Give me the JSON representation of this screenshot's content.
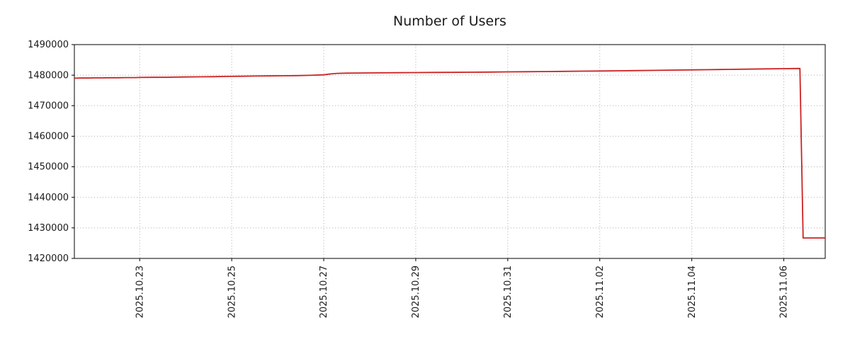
{
  "chart_data": {
    "type": "line",
    "title": "Number of Users",
    "xlabel": "",
    "ylabel": "",
    "grid": "dotted",
    "legend": "none",
    "colors": {
      "grid": "#b0b0b0",
      "axis": "#000000",
      "text": "#1a1a1a"
    },
    "x_range": [
      -1.42,
      14.9
    ],
    "y_range": [
      1420000,
      1490000
    ],
    "y_ticks": [
      1420000,
      1430000,
      1440000,
      1450000,
      1460000,
      1470000,
      1480000,
      1490000
    ],
    "x_ticks": [
      {
        "day": 0,
        "label": "2025.10.23"
      },
      {
        "day": 2,
        "label": "2025.10.25"
      },
      {
        "day": 4,
        "label": "2025.10.27"
      },
      {
        "day": 6,
        "label": "2025.10.29"
      },
      {
        "day": 8,
        "label": "2025.10.31"
      },
      {
        "day": 10,
        "label": "2025.11.02"
      },
      {
        "day": 12,
        "label": "2025.11.04"
      },
      {
        "day": 14,
        "label": "2025.11.06"
      }
    ],
    "series": [
      {
        "color": "#cc2222",
        "points": [
          [
            -1.42,
            1479000
          ],
          [
            -1.3,
            1479050
          ],
          [
            -1.1,
            1479050
          ],
          [
            -1.0,
            1479100
          ],
          [
            -0.8,
            1479100
          ],
          [
            -0.7,
            1479150
          ],
          [
            -0.5,
            1479150
          ],
          [
            -0.3,
            1479200
          ],
          [
            -0.1,
            1479200
          ],
          [
            0.0,
            1479250
          ],
          [
            0.3,
            1479300
          ],
          [
            0.6,
            1479300
          ],
          [
            0.8,
            1479350
          ],
          [
            1.0,
            1479400
          ],
          [
            1.3,
            1479450
          ],
          [
            1.6,
            1479500
          ],
          [
            1.9,
            1479600
          ],
          [
            2.2,
            1479650
          ],
          [
            2.5,
            1479700
          ],
          [
            2.8,
            1479750
          ],
          [
            3.1,
            1479800
          ],
          [
            3.4,
            1479850
          ],
          [
            3.7,
            1479950
          ],
          [
            4.0,
            1480100
          ],
          [
            4.15,
            1480400
          ],
          [
            4.3,
            1480600
          ],
          [
            4.5,
            1480650
          ],
          [
            4.8,
            1480700
          ],
          [
            5.2,
            1480750
          ],
          [
            5.6,
            1480800
          ],
          [
            6.0,
            1480850
          ],
          [
            6.4,
            1480880
          ],
          [
            6.8,
            1480920
          ],
          [
            7.2,
            1480960
          ],
          [
            7.6,
            1481000
          ],
          [
            8.0,
            1481080
          ],
          [
            8.4,
            1481130
          ],
          [
            8.8,
            1481180
          ],
          [
            9.2,
            1481230
          ],
          [
            9.6,
            1481300
          ],
          [
            10.0,
            1481360
          ],
          [
            10.4,
            1481430
          ],
          [
            10.8,
            1481500
          ],
          [
            11.2,
            1481570
          ],
          [
            11.6,
            1481650
          ],
          [
            12.0,
            1481720
          ],
          [
            12.4,
            1481800
          ],
          [
            12.8,
            1481880
          ],
          [
            13.2,
            1481960
          ],
          [
            13.6,
            1482040
          ],
          [
            14.0,
            1482120
          ],
          [
            14.2,
            1482170
          ],
          [
            14.35,
            1482200
          ],
          [
            14.42,
            1426700
          ],
          [
            14.9,
            1426700
          ]
        ]
      }
    ]
  }
}
